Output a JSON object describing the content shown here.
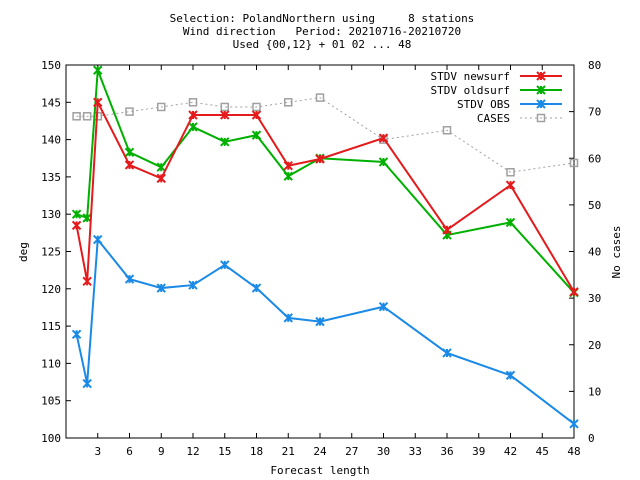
{
  "title_lines": [
    "Selection: PolandNorthern using     8 stations",
    "Wind direction   Period: 20210716-20210720",
    "Used {00,12} + 01 02 ... 48"
  ],
  "chart_data": {
    "type": "line",
    "xlabel": "Forecast length",
    "ylabel": "deg",
    "y2label": "No cases",
    "xlim": [
      0,
      48
    ],
    "ylim": [
      100,
      150
    ],
    "y2lim": [
      0,
      80
    ],
    "x_ticks": [
      "3",
      "6",
      "9",
      "12",
      "15",
      "18",
      "21",
      "24",
      "27",
      "30",
      "33",
      "36",
      "39",
      "42",
      "45",
      "48"
    ],
    "y_ticks": [
      "100",
      "105",
      "110",
      "115",
      "120",
      "125",
      "130",
      "135",
      "140",
      "145",
      "150"
    ],
    "y2_ticks": [
      "0",
      "10",
      "20",
      "30",
      "40",
      "50",
      "60",
      "70",
      "80"
    ],
    "grid": false,
    "legend_position": "top-right",
    "series": [
      {
        "name": "STDV newsurf",
        "axis": "left",
        "color": "#e41a1c",
        "marker": "x",
        "x": [
          1,
          2,
          3,
          6,
          9,
          12,
          15,
          18,
          21,
          24,
          30,
          36,
          42,
          48
        ],
        "y": [
          128.5,
          121.0,
          145.0,
          136.6,
          134.8,
          143.3,
          143.3,
          143.3,
          136.5,
          137.4,
          140.2,
          127.9,
          133.9,
          119.6
        ]
      },
      {
        "name": "STDV oldsurf",
        "axis": "left",
        "color": "#00b000",
        "marker": "x",
        "x": [
          1,
          2,
          3,
          6,
          9,
          12,
          15,
          18,
          21,
          24,
          30,
          36,
          42,
          48
        ],
        "y": [
          130.0,
          129.5,
          149.3,
          138.3,
          136.3,
          141.7,
          139.7,
          140.6,
          135.1,
          137.5,
          137.0,
          127.2,
          128.9,
          119.5
        ]
      },
      {
        "name": "STDV OBS",
        "axis": "left",
        "color": "#1a8ae6",
        "marker": "x",
        "x": [
          1,
          2,
          3,
          6,
          9,
          12,
          15,
          18,
          21,
          24,
          30,
          36,
          42,
          48
        ],
        "y": [
          113.9,
          107.3,
          126.6,
          121.3,
          120.1,
          120.5,
          123.2,
          120.1,
          116.1,
          115.6,
          117.6,
          111.4,
          108.4,
          101.9
        ]
      },
      {
        "name": "CASES",
        "axis": "right",
        "color": "#a0a0a0",
        "marker": "square",
        "dashed": true,
        "x": [
          1,
          2,
          3,
          6,
          9,
          12,
          15,
          18,
          21,
          24,
          30,
          36,
          42,
          48
        ],
        "y": [
          69,
          69,
          69,
          70,
          71,
          72,
          71,
          71,
          72,
          73,
          64,
          66,
          57,
          59
        ]
      }
    ]
  }
}
